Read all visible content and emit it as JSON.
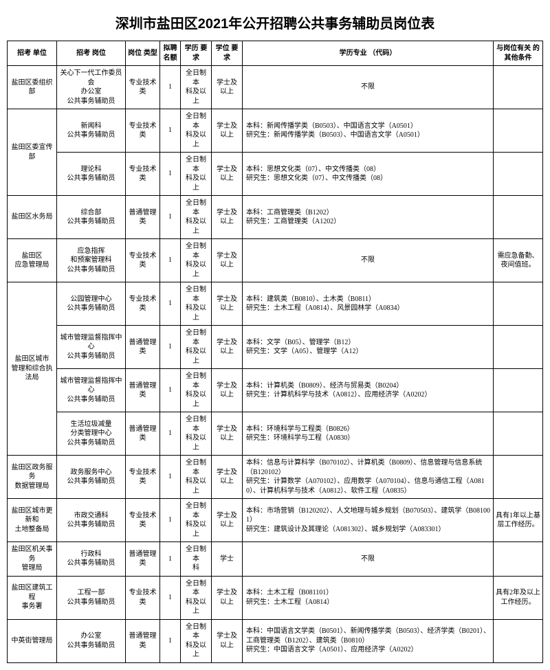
{
  "title": "深圳市盐田区2021年公开招聘公共事务辅助员岗位表",
  "headers": {
    "unit": "招考\n单位",
    "post": "招考\n岗位",
    "type": "岗位\n类型",
    "num": "拟聘\n名额",
    "edu": "学历\n要求",
    "deg": "学位\n要求",
    "major": "学历专业\n（代码）",
    "other": "与岗位有关\n的其他条件"
  },
  "rows": [
    {
      "unit": "盐田区委组织部",
      "unitRowspan": 1,
      "post": "关心下一代工作委员会\n办公室\n公共事务辅助员",
      "type": "专业技术类",
      "num": "1",
      "edu": "全日制本\n科及以上",
      "deg": "学士及以上",
      "major": "不限",
      "majorAlign": "center",
      "other": ""
    },
    {
      "unit": "盐田区委宣传部",
      "unitRowspan": 2,
      "post": "新闻科\n公共事务辅助员",
      "type": "专业技术类",
      "num": "1",
      "edu": "全日制本\n科及以上",
      "deg": "学士及以上",
      "major": "本科：新闻传播学类（B0503）、中国语言文学（A0501）\n研究生：新闻传播学类（B0503）、中国语言文学（A0501）",
      "other": ""
    },
    {
      "post": "理论科\n公共事务辅助员",
      "type": "专业技术类",
      "num": "1",
      "edu": "全日制本\n科及以上",
      "deg": "学士及以上",
      "major": "本科：思想文化类（07）、中文传播类（08）\n研究生：思想文化类（07）、中文传播类（08）",
      "other": ""
    },
    {
      "unit": "盐田区水务局",
      "unitRowspan": 1,
      "post": "综合部\n公共事务辅助员",
      "type": "普通管理类",
      "num": "1",
      "edu": "全日制本\n科及以上",
      "deg": "学士及以上",
      "major": "本科：工商管理类（B1202）\n研究生：工商管理类（A1202）",
      "other": ""
    },
    {
      "unit": "盐田区\n应急管理局",
      "unitRowspan": 1,
      "post": "应急指挥\n和预案管理科\n公共事务辅助员",
      "type": "专业技术类",
      "num": "1",
      "edu": "全日制本\n科及以上",
      "deg": "学士及以上",
      "major": "不限",
      "majorAlign": "center",
      "other": "需应急备勤、\n夜间值班。"
    },
    {
      "unit": "盐田区城市\n管理和综合执法局",
      "unitRowspan": 4,
      "post": "公园管理中心\n公共事务辅助员",
      "type": "专业技术类",
      "num": "1",
      "edu": "全日制本\n科及以上",
      "deg": "学士及以上",
      "major": "本科：建筑类（B0810）、土木类（B0811）\n研究生：土木工程（A0814）、风景园林学（A0834）",
      "other": ""
    },
    {
      "post": "城市管理监督指挥中心\n公共事务辅助员",
      "type": "普通管理类",
      "num": "1",
      "edu": "全日制本\n科及以上",
      "deg": "学士及以上",
      "major": "本科：文学（B05）、管理学（B12）\n研究生：文学（A05）、管理学（A12）",
      "other": ""
    },
    {
      "post": "城市管理监督指挥中心\n公共事务辅助员",
      "type": "普通管理类",
      "num": "1",
      "edu": "全日制本\n科及以上",
      "deg": "学士及以上",
      "major": "本科：计算机类（B0809）、经济与贸易类（B0204）\n研究生：计算机科学与技术（A0812）、应用经济学（A0202）",
      "other": ""
    },
    {
      "post": "生活垃圾减量\n分类管理中心\n公共事务辅助员",
      "type": "普通管理类",
      "num": "1",
      "edu": "全日制本\n科及以上",
      "deg": "学士及以上",
      "major": "本科：环境科学与工程类（B0826）\n研究生：环境科学与工程（A0830）",
      "other": ""
    },
    {
      "unit": "盐田区政务服务\n数据管理局",
      "unitRowspan": 1,
      "post": "政务服务中心\n公共事务辅助员",
      "type": "专业技术类",
      "num": "1",
      "edu": "全日制本\n科及以上",
      "deg": "学士及以上",
      "major": "本科：信息与计算科学（B070102）、计算机类（B0809）、信息管理与信息系统（B120102）\n研究生：计算数学（A070102）、应用数学（A070104）、信息与通信工程（A0810）、计算机科学与技术（A0812）、软件工程（A0835）",
      "other": ""
    },
    {
      "unit": "盐田区城市更新和\n土地整备局",
      "unitRowspan": 1,
      "post": "市政交通科\n公共事务辅助员",
      "type": "专业技术类",
      "num": "1",
      "edu": "全日制本\n科及以上",
      "deg": "学士及以上",
      "major": "本科：市场营销（B120202）、人文地理与城乡规划（B070503）、建筑学（B081001）\n研究生：建筑设计及其理论（A081302）、城乡规划学（A083301）",
      "other": "具有1年以上基\n层工作经历。"
    },
    {
      "unit": "盐田区机关事务\n管理局",
      "unitRowspan": 1,
      "post": "行政科\n公共事务辅助员",
      "type": "普通管理类",
      "num": "1",
      "edu": "全日制本\n科",
      "deg": "学士",
      "major": "不限",
      "majorAlign": "center",
      "other": ""
    },
    {
      "unit": "盐田区建筑工程\n事务署",
      "unitRowspan": 1,
      "post": "工程一部\n公共事务辅助员",
      "type": "专业技术类",
      "num": "1",
      "edu": "全日制本\n科及以上",
      "deg": "学士及以上",
      "major": "本科：土木工程（B081101）\n研究生：土木工程（A0814）",
      "other": "具有2年及以上\n工作经历。"
    },
    {
      "unit": "中英街管理局",
      "unitRowspan": 1,
      "post": "办公室\n公共事务辅助员",
      "type": "普通管理类",
      "num": "1",
      "edu": "全日制本\n科及以上",
      "deg": "学士及以上",
      "major": "本科：中国语言文学类（B0501）、新闻传播学类（B0503）、经济学类（B0201）、工商管理类（B1202）、建筑类（B0810）\n研究生：中国语言文学（A0501）、应用经济学（A0202）",
      "other": ""
    }
  ]
}
